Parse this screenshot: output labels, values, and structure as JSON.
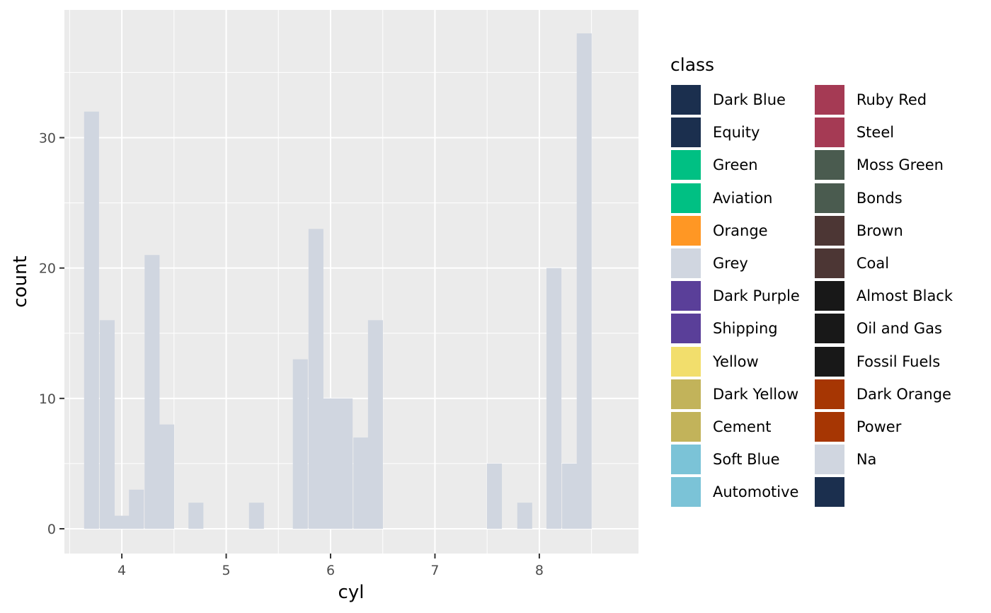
{
  "chart_data": {
    "type": "bar",
    "xlabel": "cyl",
    "ylabel": "count",
    "xlim": [
      3.45,
      8.95
    ],
    "ylim": [
      -1.9,
      39.8
    ],
    "x_ticks": [
      4,
      5,
      6,
      7,
      8
    ],
    "y_ticks": [
      0,
      10,
      20,
      30
    ],
    "bin_width": 0.143,
    "bar_color": "#D0D6E0",
    "bars": [
      {
        "x": 3.71,
        "count": 32
      },
      {
        "x": 3.86,
        "count": 16
      },
      {
        "x": 4.0,
        "count": 1
      },
      {
        "x": 4.14,
        "count": 3
      },
      {
        "x": 4.29,
        "count": 21
      },
      {
        "x": 4.43,
        "count": 8
      },
      {
        "x": 4.71,
        "count": 2
      },
      {
        "x": 5.29,
        "count": 2
      },
      {
        "x": 5.71,
        "count": 13
      },
      {
        "x": 5.86,
        "count": 23
      },
      {
        "x": 6.0,
        "count": 10
      },
      {
        "x": 6.14,
        "count": 10
      },
      {
        "x": 6.29,
        "count": 7
      },
      {
        "x": 6.43,
        "count": 16
      },
      {
        "x": 7.57,
        "count": 5
      },
      {
        "x": 7.86,
        "count": 2
      },
      {
        "x": 8.14,
        "count": 20
      },
      {
        "x": 8.29,
        "count": 5
      },
      {
        "x": 8.43,
        "count": 38
      }
    ]
  },
  "legend": {
    "title": "class",
    "columns": [
      [
        {
          "label": "Dark Blue",
          "color": "#1B2F4E"
        },
        {
          "label": "Equity",
          "color": "#1B2F4E"
        },
        {
          "label": "Green",
          "color": "#00C083"
        },
        {
          "label": "Aviation",
          "color": "#00C083"
        },
        {
          "label": "Orange",
          "color": "#FF9724"
        },
        {
          "label": "Grey",
          "color": "#D0D6E0"
        },
        {
          "label": "Dark Purple",
          "color": "#5A3F99"
        },
        {
          "label": "Shipping",
          "color": "#5A3F99"
        },
        {
          "label": "Yellow",
          "color": "#F2DE6C"
        },
        {
          "label": "Dark Yellow",
          "color": "#C2B35A"
        },
        {
          "label": "Cement",
          "color": "#C2B35A"
        },
        {
          "label": "Soft Blue",
          "color": "#7BC3D7"
        },
        {
          "label": "Automotive",
          "color": "#7BC3D7"
        }
      ],
      [
        {
          "label": "Ruby Red",
          "color": "#A53A54"
        },
        {
          "label": "Steel",
          "color": "#A53A54"
        },
        {
          "label": "Moss Green",
          "color": "#4A5B4F"
        },
        {
          "label": "Bonds",
          "color": "#4A5B4F"
        },
        {
          "label": "Brown",
          "color": "#4C3634"
        },
        {
          "label": "Coal",
          "color": "#4C3634"
        },
        {
          "label": "Almost Black",
          "color": "#181818"
        },
        {
          "label": "Oil and Gas",
          "color": "#181818"
        },
        {
          "label": "Fossil Fuels",
          "color": "#181818"
        },
        {
          "label": "Dark Orange",
          "color": "#A63603"
        },
        {
          "label": "Power",
          "color": "#A63603"
        },
        {
          "label": "Na",
          "color": "#D0D6E0"
        },
        {
          "label": "",
          "color": "#1B2F4E"
        }
      ]
    ]
  }
}
